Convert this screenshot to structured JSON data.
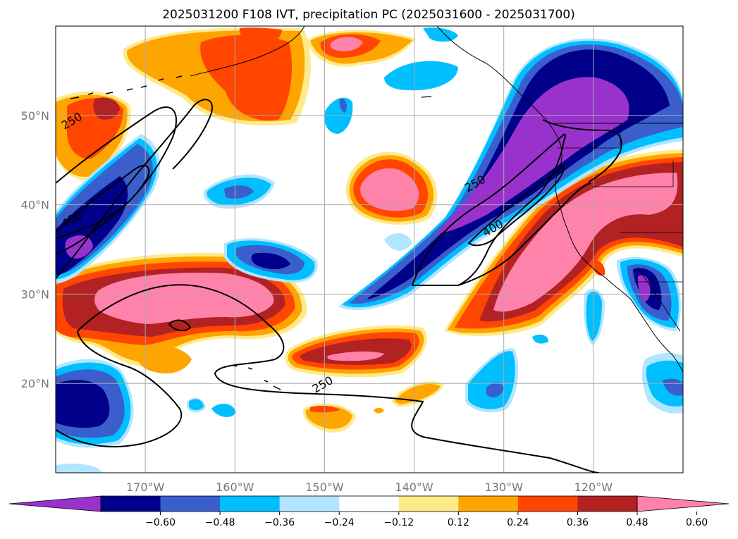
{
  "title": "2025031200 F108 IVT, precipitation PC (2025031600 - 2025031700)",
  "map": {
    "lon_range": [
      -180,
      -110
    ],
    "lat_range": [
      10,
      60
    ],
    "lon_ticks": [
      {
        "lon": -170,
        "label": "170°W"
      },
      {
        "lon": -160,
        "label": "160°W"
      },
      {
        "lon": -150,
        "label": "150°W"
      },
      {
        "lon": -140,
        "label": "140°W"
      },
      {
        "lon": -130,
        "label": "130°W"
      },
      {
        "lon": -120,
        "label": "120°W"
      }
    ],
    "lat_ticks": [
      {
        "lat": 20,
        "label": "20°N"
      },
      {
        "lat": 30,
        "label": "30°N"
      },
      {
        "lat": 40,
        "label": "40°N"
      },
      {
        "lat": 50,
        "label": "50°N"
      }
    ],
    "grid": true
  },
  "colors": {
    "strong_neg": "#9932cc",
    "l1": "#00008b",
    "l2": "#3a5fcd",
    "l3": "#00bfff",
    "l4": "#b2e5ff",
    "p1": "#ffea8a",
    "p2": "#ffa500",
    "p3": "#ff4500",
    "p4": "#b22222",
    "p5": "#ff82ab",
    "land": "#000000",
    "ivt_contour": "#000000"
  },
  "colorbar": {
    "levels": [
      "−0.60",
      "−0.48",
      "−0.36",
      "−0.24",
      "−0.12",
      "0.12",
      "0.24",
      "0.36",
      "0.48",
      "0.60"
    ],
    "colors": [
      "#9932cc",
      "#00008b",
      "#3a5fcd",
      "#00bfff",
      "#b2e5ff",
      "#ffffff",
      "#ffea8a",
      "#ffa500",
      "#ff4500",
      "#b22222",
      "#ff82ab"
    ],
    "extend": "both"
  },
  "ivt_contours": {
    "levels": [
      "250",
      "400"
    ],
    "labels": [
      {
        "text": "250",
        "lon": -178,
        "lat": 49
      },
      {
        "text": "400",
        "lon": -178,
        "lat": 38
      },
      {
        "text": "250",
        "lon": -150,
        "lat": 19.5
      },
      {
        "text": "250",
        "lon": -133,
        "lat": 42
      },
      {
        "text": "400",
        "lon": -131,
        "lat": 37
      }
    ]
  }
}
